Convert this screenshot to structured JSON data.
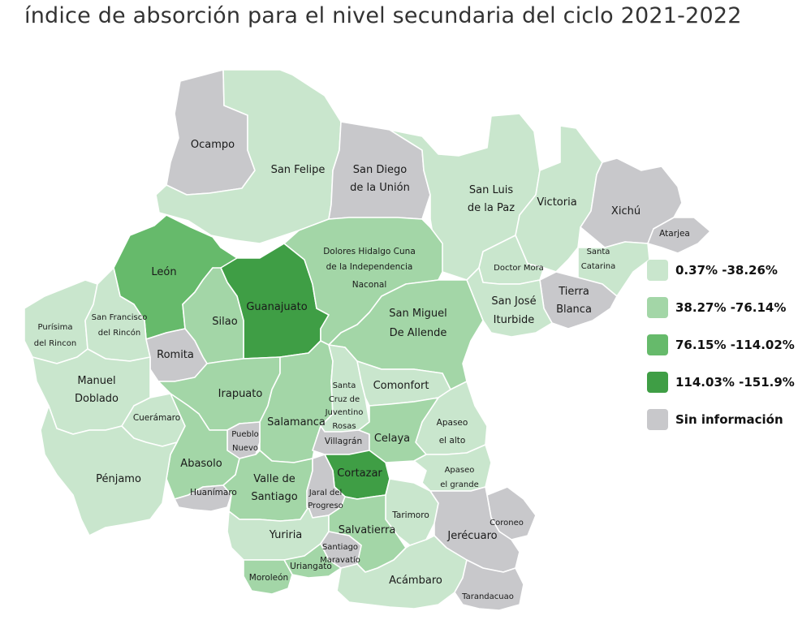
{
  "title": "índice de absorción para el nivel secundaria del ciclo 2021-2022",
  "colors": {
    "c1": "#c9e6cd",
    "c2": "#a3d6a7",
    "c3": "#66ba6b",
    "c4": "#3f9e45",
    "na": "#c8c8cb"
  },
  "legend": [
    {
      "label": "0.37% -38.26%",
      "color": "c1"
    },
    {
      "label": "38.27% -76.14%",
      "color": "c2"
    },
    {
      "label": "76.15% -114.02%",
      "color": "c3"
    },
    {
      "label": "114.03% -151.9%",
      "color": "c4"
    },
    {
      "label": "Sin información",
      "color": "na"
    }
  ],
  "municipalities": [
    {
      "name": "Ocampo",
      "class": "na",
      "label": [
        "Ocampo"
      ]
    },
    {
      "name": "San Felipe",
      "class": "c1",
      "label": [
        "San Felipe"
      ]
    },
    {
      "name": "San Diego de la Unión",
      "class": "na",
      "label": [
        "San Diego",
        "de la Unión"
      ]
    },
    {
      "name": "San Luis de la Paz",
      "class": "c1",
      "label": [
        "San Luis",
        "de la Paz"
      ]
    },
    {
      "name": "Victoria",
      "class": "c1",
      "label": [
        "Victoria"
      ]
    },
    {
      "name": "Xichú",
      "class": "na",
      "label": [
        "Xichú"
      ]
    },
    {
      "name": "Atarjea",
      "class": "na",
      "label": [
        "Atarjea"
      ]
    },
    {
      "name": "Santa Catarina",
      "class": "c1",
      "label": [
        "Santa",
        "Catarina"
      ]
    },
    {
      "name": "Doctor Mora",
      "class": "c1",
      "label": [
        "Doctor Mora"
      ]
    },
    {
      "name": "Tierra Blanca",
      "class": "na",
      "label": [
        "Tierra",
        "Blanca"
      ]
    },
    {
      "name": "San José Iturbide",
      "class": "c1",
      "label": [
        "San José",
        "Iturbide"
      ]
    },
    {
      "name": "León",
      "class": "c3",
      "label": [
        "León"
      ]
    },
    {
      "name": "Guanajuato",
      "class": "c4",
      "label": [
        "Guanajuato"
      ]
    },
    {
      "name": "Dolores Hidalgo Cuna de la Independencia Naconal",
      "class": "c2",
      "label": [
        "Dolores Hidalgo Cuna",
        "de la Independencia",
        "Naconal"
      ]
    },
    {
      "name": "San Miguel De Allende",
      "class": "c2",
      "label": [
        "San Miguel",
        "De Allende"
      ]
    },
    {
      "name": "Silao",
      "class": "c2",
      "label": [
        "Silao"
      ]
    },
    {
      "name": "Purísima del Rincon",
      "class": "c1",
      "label": [
        "Purísima",
        "del Rincon"
      ]
    },
    {
      "name": "San Francisco del Rincón",
      "class": "c1",
      "label": [
        "San Francisco",
        "del Rincón"
      ]
    },
    {
      "name": "Romita",
      "class": "na",
      "label": [
        "Romita"
      ]
    },
    {
      "name": "Manuel Doblado",
      "class": "c1",
      "label": [
        "Manuel",
        "Doblado"
      ]
    },
    {
      "name": "Cuerámaro",
      "class": "c1",
      "label": [
        "Cuerámaro"
      ]
    },
    {
      "name": "Irapuato",
      "class": "c2",
      "label": [
        "Irapuato"
      ]
    },
    {
      "name": "Salamanca",
      "class": "c2",
      "label": [
        "Salamanca"
      ]
    },
    {
      "name": "Santa Cruz de Juventino Rosas",
      "class": "c1",
      "label": [
        "Santa",
        "Cruz de",
        "Juventino",
        "Rosas"
      ]
    },
    {
      "name": "Comonfort",
      "class": "c1",
      "label": [
        "Comonfort"
      ]
    },
    {
      "name": "Apaseo el alto",
      "class": "c1",
      "label": [
        "Apaseo",
        "el alto"
      ]
    },
    {
      "name": "Villagrán",
      "class": "na",
      "label": [
        "Villagrán"
      ]
    },
    {
      "name": "Celaya",
      "class": "c2",
      "label": [
        "Celaya"
      ]
    },
    {
      "name": "Pueblo Nuevo",
      "class": "na",
      "label": [
        "Pueblo",
        "Nuevo"
      ]
    },
    {
      "name": "Abasolo",
      "class": "c2",
      "label": [
        "Abasolo"
      ]
    },
    {
      "name": "Pénjamo",
      "class": "c1",
      "label": [
        "Pénjamo"
      ]
    },
    {
      "name": "Huanímaro",
      "class": "na",
      "label": [
        "Huanímaro"
      ]
    },
    {
      "name": "Valle de Santiago",
      "class": "c2",
      "label": [
        "Valle de",
        "Santiago"
      ]
    },
    {
      "name": "Cortazar",
      "class": "c4",
      "label": [
        "Cortazar"
      ]
    },
    {
      "name": "Apaseo el grande",
      "class": "c1",
      "label": [
        "Apaseo",
        "el grande"
      ]
    },
    {
      "name": "Jaral del Progreso",
      "class": "na",
      "label": [
        "Jaral del",
        "Progreso"
      ]
    },
    {
      "name": "Tarimoro",
      "class": "c1",
      "label": [
        "Tarimoro"
      ]
    },
    {
      "name": "Coroneo",
      "class": "na",
      "label": [
        "Coroneo"
      ]
    },
    {
      "name": "Jerécuaro",
      "class": "na",
      "label": [
        "Jerécuaro"
      ]
    },
    {
      "name": "Yuriria",
      "class": "c1",
      "label": [
        "Yuriria"
      ]
    },
    {
      "name": "Salvatierra",
      "class": "c2",
      "label": [
        "Salvatierra"
      ]
    },
    {
      "name": "Santiago Maravatío",
      "class": "na",
      "label": [
        "Santiago",
        "Maravatío"
      ]
    },
    {
      "name": "Uriangato",
      "class": "c2",
      "label": [
        "Uriangato"
      ]
    },
    {
      "name": "Moroleón",
      "class": "c2",
      "label": [
        "Moroleón"
      ]
    },
    {
      "name": "Acámbaro",
      "class": "c1",
      "label": [
        "Acámbaro"
      ]
    },
    {
      "name": "Tarandacuao",
      "class": "na",
      "label": [
        "Tarandacuao"
      ]
    }
  ]
}
